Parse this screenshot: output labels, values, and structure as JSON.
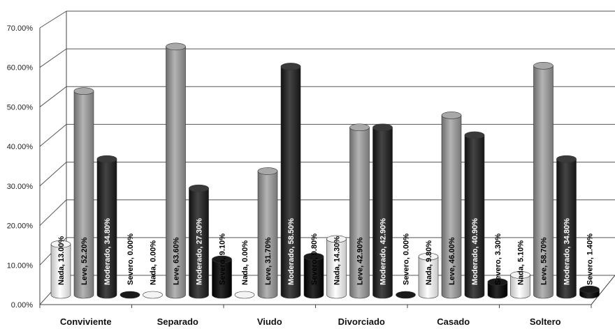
{
  "chart_data": {
    "type": "bar",
    "categories": [
      "Conviviente",
      "Separado",
      "Viudo",
      "Divorciado",
      "Casado",
      "Soltero"
    ],
    "series": [
      {
        "name": "Nada",
        "values": [
          13.0,
          0.0,
          0.0,
          14.3,
          9.8,
          5.1
        ],
        "color": "#e8e8e8"
      },
      {
        "name": "Leve",
        "values": [
          52.2,
          63.6,
          31.7,
          42.9,
          46.0,
          58.7
        ],
        "color": "#8a8a8a"
      },
      {
        "name": "Moderado",
        "values": [
          34.8,
          27.3,
          58.5,
          42.9,
          40.9,
          34.8
        ],
        "color": "#262626"
      },
      {
        "name": "Severo",
        "values": [
          0.0,
          9.1,
          9.8,
          0.0,
          3.3,
          1.4
        ],
        "color": "#0a0a0a"
      }
    ],
    "data_labels": [
      [
        "Nada, 13.00%",
        "Leve, 52.20%",
        "Moderado, 34.80%",
        "Severo, 0.00%"
      ],
      [
        "Nada, 0.00%",
        "Leve, 63.60%",
        "Moderado, 27.30%",
        "Severo, 9.10%"
      ],
      [
        "Nada, 0.00%",
        "Leve, 31.70%",
        "Moderado, 58.50%",
        "Severo, 9.80%"
      ],
      [
        "Nada, 14.30%",
        "Leve, 42.90%",
        "Moderado, 42.90%",
        "Severo, 0.00%"
      ],
      [
        "Nada, 9.80%",
        "Leve, 46.00%",
        "Moderado, 40.90%",
        "Severo, 3.30%"
      ],
      [
        "Nada, 5.10%",
        "Leve, 58.70%",
        "Moderado, 34.80%",
        "Severo, 1.40%"
      ]
    ],
    "y_ticks": [
      "0.00%",
      "10.00%",
      "20.00%",
      "30.00%",
      "40.00%",
      "50.00%",
      "60.00%",
      "70.00%"
    ],
    "ylim": [
      0,
      70
    ],
    "grid": true,
    "legend": "none",
    "title": "",
    "xlabel": "",
    "ylabel": ""
  }
}
